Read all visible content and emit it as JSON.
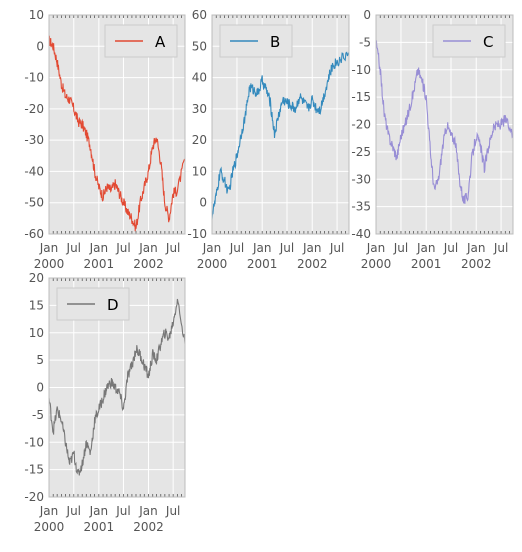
{
  "chart_data": [
    {
      "type": "line",
      "title": "",
      "xlabel": "",
      "ylabel": "",
      "ylim": [
        -60,
        10
      ],
      "yticks": [
        -60,
        -50,
        -40,
        -30,
        -20,
        -10,
        0,
        10
      ],
      "x_tick_labels": [
        {
          "date": "2000-01-01",
          "top": "Jan",
          "bottom": "2000"
        },
        {
          "date": "2000-07-01",
          "top": "Jul",
          "bottom": ""
        },
        {
          "date": "2001-01-01",
          "top": "Jan",
          "bottom": "2001"
        },
        {
          "date": "2001-07-01",
          "top": "Jul",
          "bottom": ""
        },
        {
          "date": "2002-01-01",
          "top": "Jan",
          "bottom": "2002"
        },
        {
          "date": "2002-07-01",
          "top": "Jul",
          "bottom": ""
        }
      ],
      "xlim": [
        "2000-01-01",
        "2002-09-26"
      ],
      "grid": true,
      "legend": "top-right",
      "series": [
        {
          "name": "A",
          "color": "#E24A33",
          "x": [
            "2000-01-01",
            "2000-02-01",
            "2000-03-01",
            "2000-04-01",
            "2000-05-01",
            "2000-06-01",
            "2000-07-01",
            "2000-08-01",
            "2000-09-01",
            "2000-10-01",
            "2000-11-01",
            "2000-12-01",
            "2001-01-01",
            "2001-02-01",
            "2001-03-01",
            "2001-04-01",
            "2001-05-01",
            "2001-06-01",
            "2001-07-01",
            "2001-08-01",
            "2001-09-01",
            "2001-10-01",
            "2001-11-01",
            "2001-12-01",
            "2002-01-01",
            "2002-02-01",
            "2002-03-01",
            "2002-04-01",
            "2002-05-01",
            "2002-06-01",
            "2002-07-01",
            "2002-08-01",
            "2002-09-26"
          ],
          "values": [
            2,
            0,
            -5,
            -12,
            -16,
            -17,
            -20,
            -24,
            -25,
            -28,
            -32,
            -40,
            -45,
            -48,
            -45,
            -46,
            -44,
            -47,
            -50,
            -53,
            -55,
            -58,
            -50,
            -45,
            -40,
            -32,
            -29,
            -37,
            -50,
            -55,
            -47,
            -46,
            -36
          ]
        }
      ]
    },
    {
      "type": "line",
      "title": "",
      "xlabel": "",
      "ylabel": "",
      "ylim": [
        -10,
        60
      ],
      "yticks": [
        -10,
        0,
        10,
        20,
        30,
        40,
        50,
        60
      ],
      "x_tick_labels": [
        {
          "date": "2000-01-01",
          "top": "Jan",
          "bottom": "2000"
        },
        {
          "date": "2000-07-01",
          "top": "Jul",
          "bottom": ""
        },
        {
          "date": "2001-01-01",
          "top": "Jan",
          "bottom": "2001"
        },
        {
          "date": "2001-07-01",
          "top": "Jul",
          "bottom": ""
        },
        {
          "date": "2002-01-01",
          "top": "Jan",
          "bottom": "2002"
        },
        {
          "date": "2002-07-01",
          "top": "Jul",
          "bottom": ""
        }
      ],
      "xlim": [
        "2000-01-01",
        "2002-09-26"
      ],
      "grid": true,
      "legend": "top-left",
      "series": [
        {
          "name": "B",
          "color": "#348ABD",
          "x": [
            "2000-01-01",
            "2000-02-01",
            "2000-03-01",
            "2000-04-01",
            "2000-05-01",
            "2000-06-01",
            "2000-07-01",
            "2000-08-01",
            "2000-09-01",
            "2000-10-01",
            "2000-11-01",
            "2000-12-01",
            "2001-01-01",
            "2001-02-01",
            "2001-03-01",
            "2001-04-01",
            "2001-05-01",
            "2001-06-01",
            "2001-07-01",
            "2001-08-01",
            "2001-09-01",
            "2001-10-01",
            "2001-11-01",
            "2001-12-01",
            "2002-01-01",
            "2002-02-01",
            "2002-03-01",
            "2002-04-01",
            "2002-05-01",
            "2002-06-01",
            "2002-07-01",
            "2002-08-01",
            "2002-09-26"
          ],
          "values": [
            -4,
            2,
            10,
            7,
            3,
            10,
            15,
            22,
            28,
            37,
            36,
            35,
            39,
            36,
            32,
            22,
            28,
            33,
            32,
            31,
            30,
            34,
            32,
            30,
            33,
            30,
            30,
            35,
            40,
            44,
            45,
            46,
            48
          ]
        }
      ]
    },
    {
      "type": "line",
      "title": "",
      "xlabel": "",
      "ylabel": "",
      "ylim": [
        -40,
        0
      ],
      "yticks": [
        -40,
        -35,
        -30,
        -25,
        -20,
        -15,
        -10,
        -5,
        0
      ],
      "x_tick_labels": [
        {
          "date": "2000-01-01",
          "top": "Jan",
          "bottom": "2000"
        },
        {
          "date": "2000-07-01",
          "top": "Jul",
          "bottom": ""
        },
        {
          "date": "2001-01-01",
          "top": "Jan",
          "bottom": "2001"
        },
        {
          "date": "2001-07-01",
          "top": "Jul",
          "bottom": ""
        },
        {
          "date": "2002-01-01",
          "top": "Jan",
          "bottom": "2002"
        },
        {
          "date": "2002-07-01",
          "top": "Jul",
          "bottom": ""
        }
      ],
      "xlim": [
        "2000-01-01",
        "2002-09-26"
      ],
      "grid": true,
      "legend": "top-right",
      "series": [
        {
          "name": "C",
          "color": "#988ED5",
          "x": [
            "2000-01-01",
            "2000-02-01",
            "2000-03-01",
            "2000-04-01",
            "2000-05-01",
            "2000-06-01",
            "2000-07-01",
            "2000-08-01",
            "2000-09-01",
            "2000-10-01",
            "2000-11-01",
            "2000-12-01",
            "2001-01-01",
            "2001-02-01",
            "2001-03-01",
            "2001-04-01",
            "2001-05-01",
            "2001-06-01",
            "2001-07-01",
            "2001-08-01",
            "2001-09-01",
            "2001-10-01",
            "2001-11-01",
            "2001-12-01",
            "2002-01-01",
            "2002-02-01",
            "2002-03-01",
            "2002-04-01",
            "2002-05-01",
            "2002-06-01",
            "2002-07-01",
            "2002-08-01",
            "2002-09-26"
          ],
          "values": [
            -5,
            -10,
            -18,
            -22,
            -24,
            -26,
            -22,
            -20,
            -17,
            -14,
            -10,
            -12,
            -15,
            -25,
            -32,
            -30,
            -24,
            -20,
            -22,
            -23,
            -30,
            -34,
            -33,
            -26,
            -22,
            -24,
            -28,
            -24,
            -21,
            -20,
            -20,
            -19,
            -22
          ]
        }
      ]
    },
    {
      "type": "line",
      "title": "",
      "xlabel": "",
      "ylabel": "",
      "ylim": [
        -20,
        20
      ],
      "yticks": [
        -20,
        -15,
        -10,
        -5,
        0,
        5,
        10,
        15,
        20
      ],
      "x_tick_labels": [
        {
          "date": "2000-01-01",
          "top": "Jan",
          "bottom": "2000"
        },
        {
          "date": "2000-07-01",
          "top": "Jul",
          "bottom": ""
        },
        {
          "date": "2001-01-01",
          "top": "Jan",
          "bottom": "2001"
        },
        {
          "date": "2001-07-01",
          "top": "Jul",
          "bottom": ""
        },
        {
          "date": "2002-01-01",
          "top": "Jan",
          "bottom": "2002"
        },
        {
          "date": "2002-07-01",
          "top": "Jul",
          "bottom": ""
        }
      ],
      "xlim": [
        "2000-01-01",
        "2002-09-26"
      ],
      "grid": true,
      "legend": "top-left",
      "series": [
        {
          "name": "D",
          "color": "#777777",
          "x": [
            "2000-01-01",
            "2000-02-01",
            "2000-03-01",
            "2000-04-01",
            "2000-05-01",
            "2000-06-01",
            "2000-07-01",
            "2000-08-01",
            "2000-09-01",
            "2000-10-01",
            "2000-11-01",
            "2000-12-01",
            "2001-01-01",
            "2001-02-01",
            "2001-03-01",
            "2001-04-01",
            "2001-05-01",
            "2001-06-01",
            "2001-07-01",
            "2001-08-01",
            "2001-09-01",
            "2001-10-01",
            "2001-11-01",
            "2001-12-01",
            "2002-01-01",
            "2002-02-01",
            "2002-03-01",
            "2002-04-01",
            "2002-05-01",
            "2002-06-01",
            "2002-07-01",
            "2002-08-01",
            "2002-09-26"
          ],
          "values": [
            -2,
            -8,
            -4,
            -6,
            -10,
            -14,
            -12,
            -16,
            -14,
            -10,
            -12,
            -6,
            -4,
            -2,
            0,
            1,
            0,
            -1,
            -4,
            2,
            4,
            7,
            6,
            4,
            2,
            6,
            5,
            8,
            10,
            9,
            12,
            16,
            8
          ]
        }
      ]
    }
  ]
}
